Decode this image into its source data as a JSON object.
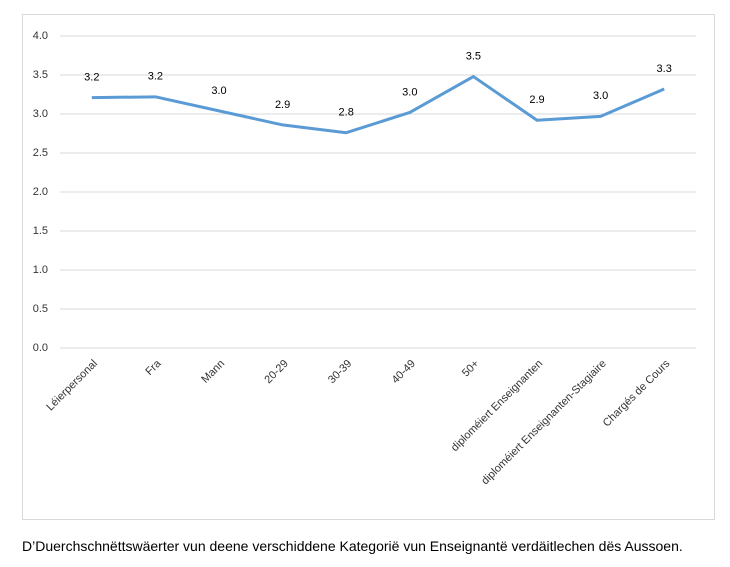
{
  "chart_data": {
    "type": "line",
    "categories": [
      "Léierpersonal",
      "Fra",
      "Mann",
      "20-29",
      "30-39",
      "40-49",
      "50+",
      "diploméiert Enseignanten",
      "diploméiert Enseignanten-Stagiaire",
      "Chargés de Cours"
    ],
    "values": [
      3.21,
      3.22,
      3.04,
      2.86,
      2.76,
      3.02,
      3.48,
      2.92,
      2.97,
      3.32
    ],
    "value_labels": [
      "3.2",
      "3.2",
      "3.0",
      "2.9",
      "2.8",
      "3.0",
      "3.5",
      "2.9",
      "3.0",
      "3.3"
    ],
    "color": "#5b9bd5",
    "ylim": [
      0,
      4
    ],
    "yticks": [
      {
        "value": 0,
        "label": "0.0"
      },
      0.5,
      {
        "value": 1,
        "label": "1.0"
      },
      1.5,
      {
        "value": 2,
        "label": "2.0"
      },
      2.5,
      {
        "value": 3,
        "label": "3.0"
      },
      3.5,
      {
        "value": 4,
        "label": "4.0"
      }
    ],
    "grid": true,
    "caption": "D’Duerchschnëttswäerter vun deene verschiddene Kategorië vun Enseignantë verdäitlechen dës Aussoen."
  }
}
